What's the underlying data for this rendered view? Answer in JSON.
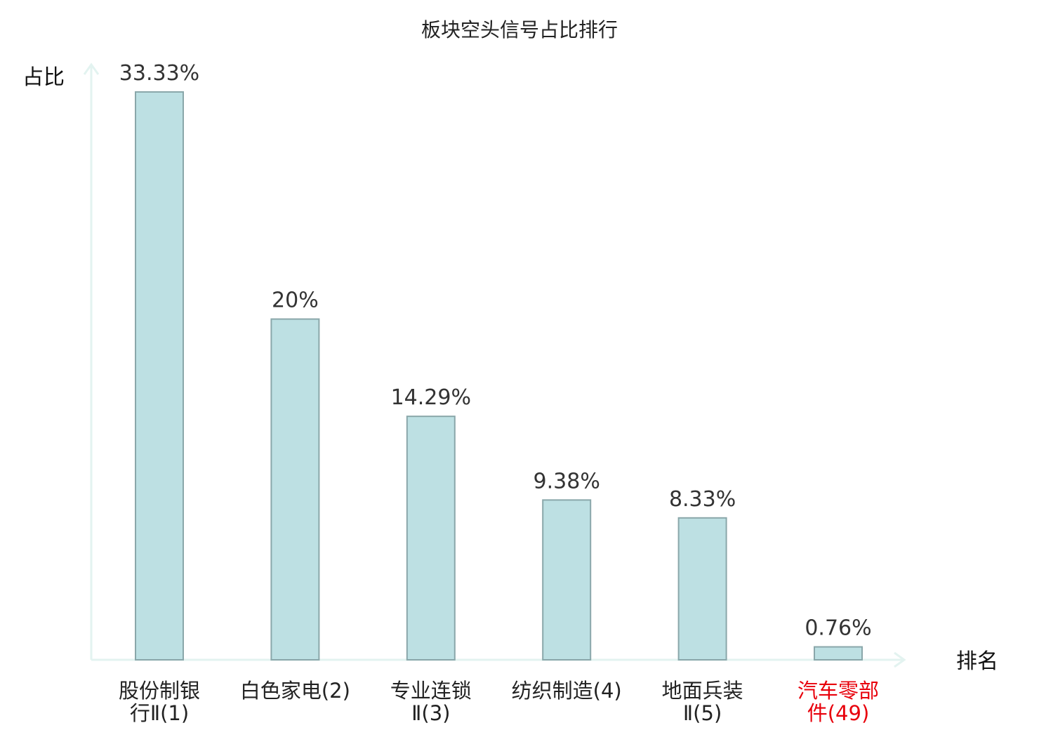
{
  "chart_data": {
    "type": "bar",
    "title": "板块空头信号占比排行",
    "xlabel": "排名",
    "ylabel": "占比",
    "ylim": [
      0,
      35
    ],
    "grid": false,
    "categories": [
      {
        "name": "股份制银行Ⅱ",
        "line1": "股份制银",
        "line2": "行Ⅱ",
        "rank": "(1)",
        "highlight": false
      },
      {
        "name": "白色家电",
        "line1": "白色家电",
        "line2": "",
        "rank": "(2)",
        "highlight": false
      },
      {
        "name": "专业连锁Ⅱ",
        "line1": "专业连锁",
        "line2": "Ⅱ",
        "rank": "(3)",
        "highlight": false
      },
      {
        "name": "纺织制造",
        "line1": "纺织制造",
        "line2": "",
        "rank": "(4)",
        "highlight": false
      },
      {
        "name": "地面兵装Ⅱ",
        "line1": "地面兵装",
        "line2": "Ⅱ",
        "rank": "(5)",
        "highlight": false
      },
      {
        "name": "汽车零部件",
        "line1": "汽车零部",
        "line2": "件",
        "rank": "(49)",
        "highlight": true
      }
    ],
    "values": [
      33.33,
      20,
      14.29,
      9.38,
      8.33,
      0.76
    ],
    "value_labels": [
      "33.33%",
      "20%",
      "14.29%",
      "9.38%",
      "8.33%",
      "0.76%"
    ],
    "colors": {
      "bar_fill": "#bde0e3",
      "bar_stroke": "#8aa7aa",
      "axis": "#e3f3f0",
      "highlight_text": "#e8000b",
      "text": "#222222"
    }
  }
}
